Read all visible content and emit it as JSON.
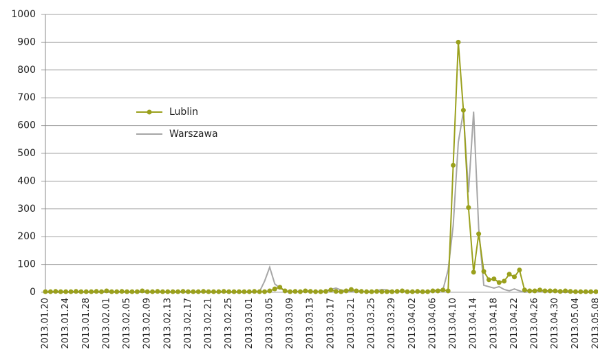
{
  "chart_data": {
    "type": "line",
    "categories": [
      "2013.01.20",
      null,
      null,
      null,
      "2013.01.24",
      null,
      null,
      null,
      "2013.01.28",
      null,
      null,
      null,
      "2013.02.01",
      null,
      null,
      null,
      "2013.02.05",
      null,
      null,
      null,
      "2013.02.09",
      null,
      null,
      null,
      "2013.02.13",
      null,
      null,
      null,
      "2013.02.17",
      null,
      null,
      null,
      "2013.02.21",
      null,
      null,
      null,
      "2013.02.25",
      null,
      null,
      null,
      "2013.03.01",
      null,
      null,
      null,
      "2013.03.05",
      null,
      null,
      null,
      "2013.03.09",
      null,
      null,
      null,
      "2013.03.13",
      null,
      null,
      null,
      "2013.03.17",
      null,
      null,
      null,
      "2013.03.21",
      null,
      null,
      null,
      "2013.03.25",
      null,
      null,
      null,
      "2013.03.29",
      null,
      null,
      null,
      "2013.04.02",
      null,
      null,
      null,
      "2013.04.06",
      null,
      null,
      null,
      "2013.04.10",
      null,
      null,
      null,
      "2013.04.14",
      null,
      null,
      null,
      "2013.04.18",
      null,
      null,
      null,
      "2013.04.22",
      null,
      null,
      null,
      "2013.04.26",
      null,
      null,
      null,
      "2013.04.30",
      null,
      null,
      null,
      "2013.05.04",
      null,
      null,
      null,
      "2013.05.08"
    ],
    "series": [
      {
        "name": "Lublin",
        "color": "#9aa01c",
        "markers": true,
        "values": [
          2,
          2,
          3,
          2,
          2,
          2,
          3,
          2,
          2,
          2,
          3,
          2,
          5,
          2,
          2,
          3,
          2,
          2,
          2,
          5,
          2,
          2,
          3,
          2,
          2,
          2,
          2,
          3,
          2,
          2,
          2,
          3,
          2,
          2,
          2,
          3,
          2,
          2,
          2,
          2,
          2,
          3,
          2,
          2,
          5,
          12,
          18,
          5,
          2,
          3,
          2,
          5,
          3,
          2,
          2,
          3,
          8,
          3,
          2,
          5,
          10,
          5,
          3,
          2,
          2,
          3,
          2,
          2,
          2,
          3,
          5,
          2,
          2,
          3,
          2,
          2,
          5,
          5,
          8,
          5,
          457,
          900,
          655,
          305,
          72,
          210,
          75,
          45,
          48,
          35,
          40,
          65,
          55,
          80,
          8,
          5,
          5,
          8,
          5,
          5,
          5,
          3,
          5,
          3,
          2,
          2,
          2,
          2,
          2
        ]
      },
      {
        "name": "Warszawa",
        "color": "#a6a6a6",
        "markers": false,
        "values": [
          0,
          0,
          0,
          0,
          0,
          0,
          0,
          0,
          0,
          0,
          0,
          0,
          0,
          0,
          0,
          0,
          0,
          0,
          0,
          0,
          0,
          0,
          0,
          0,
          0,
          0,
          0,
          0,
          0,
          0,
          0,
          0,
          0,
          0,
          0,
          0,
          0,
          0,
          0,
          0,
          0,
          0,
          2,
          40,
          90,
          30,
          15,
          5,
          2,
          0,
          2,
          5,
          3,
          2,
          2,
          5,
          10,
          15,
          8,
          5,
          3,
          2,
          2,
          0,
          0,
          5,
          10,
          8,
          3,
          2,
          2,
          0,
          0,
          0,
          0,
          0,
          5,
          8,
          10,
          80,
          240,
          540,
          650,
          360,
          650,
          230,
          25,
          20,
          15,
          20,
          10,
          5,
          12,
          5,
          0,
          2,
          5,
          5,
          3,
          2,
          2,
          0,
          0,
          0,
          0,
          0,
          0,
          0,
          0
        ]
      }
    ],
    "ylim": [
      0,
      1000
    ],
    "yticks": [
      0,
      100,
      200,
      300,
      400,
      500,
      600,
      700,
      800,
      900,
      1000
    ],
    "grid": true
  }
}
